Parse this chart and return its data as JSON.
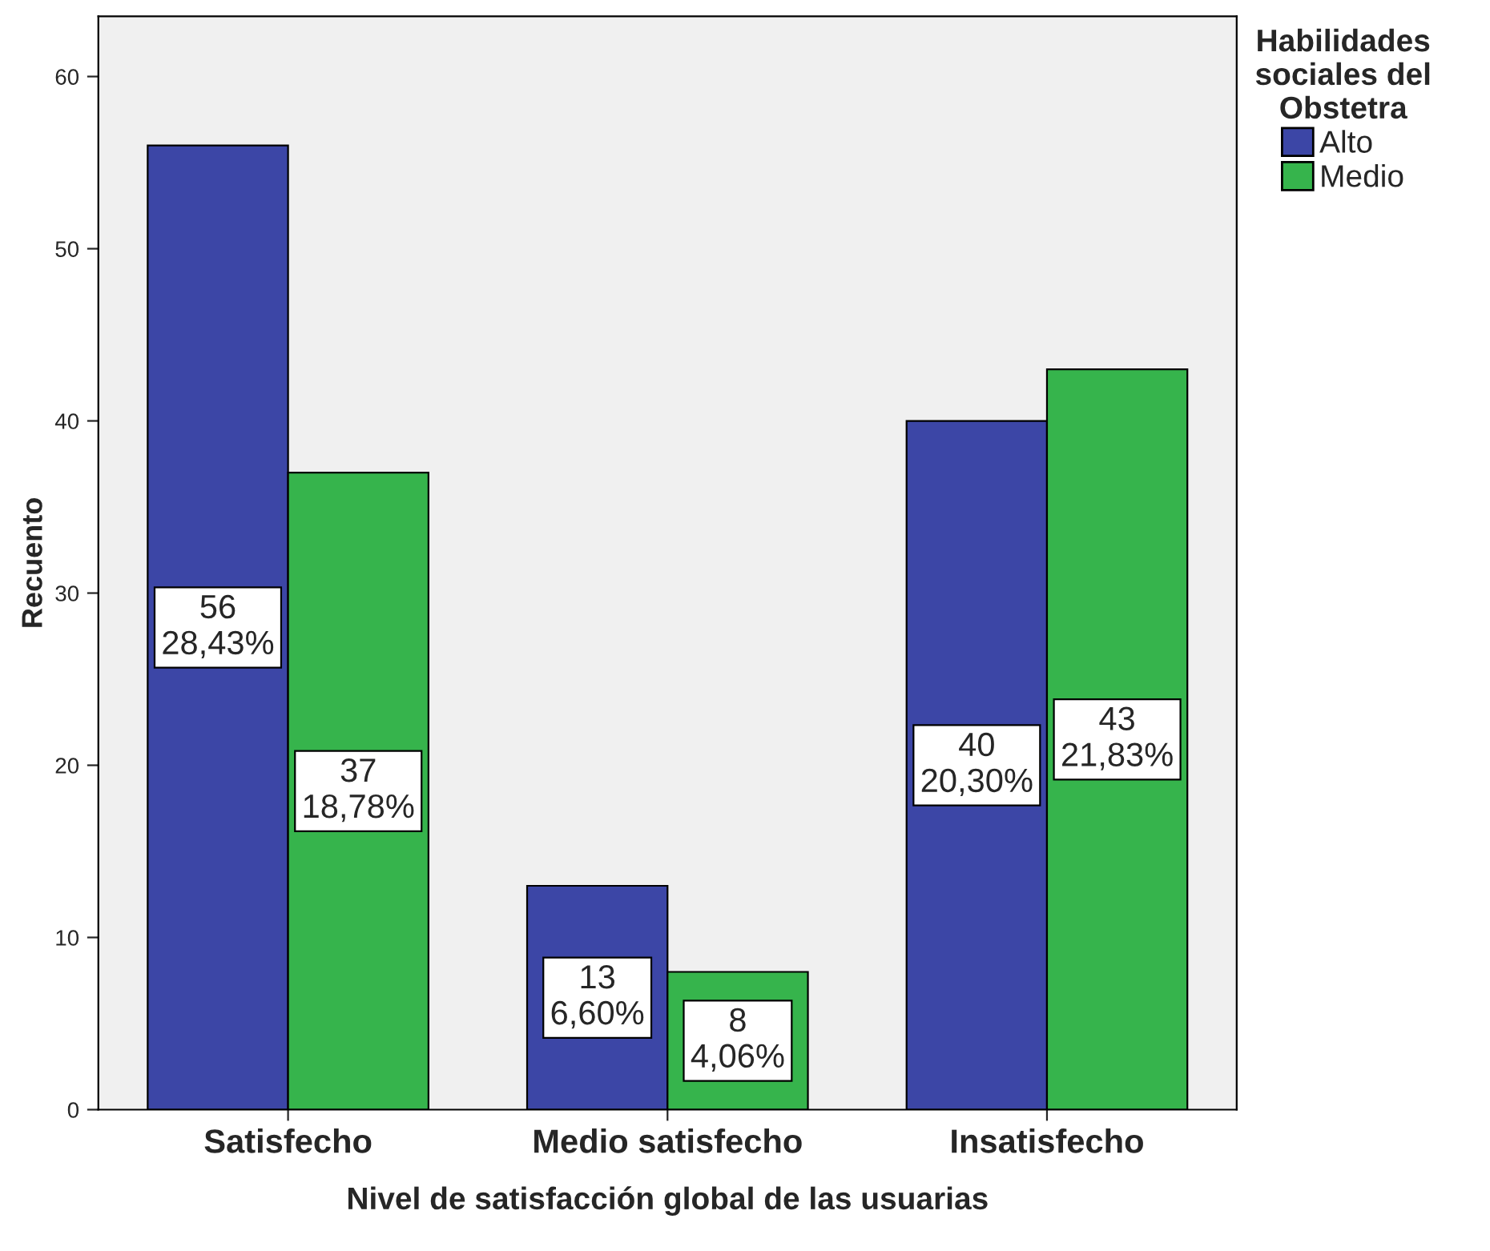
{
  "chart_data": {
    "type": "bar",
    "xlabel": "Nivel de satisfacción global de las usuarias",
    "ylabel": "Recuento",
    "legend_title": "Habilidades\nsociales del\nObstetra",
    "categories": [
      "Satisfecho",
      "Medio satisfecho",
      "Insatisfecho"
    ],
    "series": [
      {
        "name": "Alto",
        "color": "#3c46a6",
        "values": [
          56,
          13,
          40
        ],
        "value_labels": [
          "56\n28,43%",
          "13\n6,60%",
          "40\n20,30%"
        ]
      },
      {
        "name": "Medio",
        "color": "#36b44c",
        "values": [
          37,
          8,
          43
        ],
        "value_labels": [
          "37\n18,78%",
          "8\n4,06%",
          "43\n21,83%"
        ]
      }
    ],
    "ylim": [
      0,
      63.5
    ],
    "yticks": [
      0,
      10,
      20,
      30,
      40,
      50,
      60
    ],
    "grid": false,
    "legend": "top right"
  }
}
